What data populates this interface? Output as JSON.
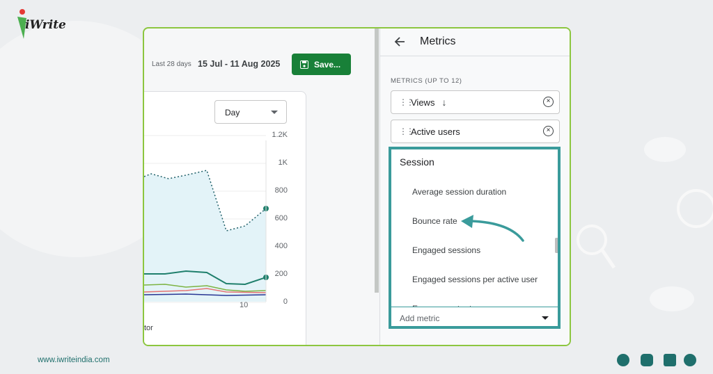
{
  "brand": {
    "logo_text": "iWrite"
  },
  "footer": {
    "url": "www.iwriteindia.com"
  },
  "report": {
    "date_range_label": "Last 28 days",
    "date_range": "15 Jul - 11 Aug 2025",
    "save_button": "Save...",
    "granularity": "Day",
    "y_axis_labels": [
      "1.2K",
      "1K",
      "800",
      "600",
      "400",
      "200",
      "0"
    ],
    "x_axis_labels": [
      "10"
    ],
    "legend_fragment": "tor"
  },
  "panel": {
    "title": "Metrics",
    "section_label": "METRICS (UP TO 12)",
    "selected_metrics": [
      "Views",
      "Active users"
    ],
    "dropdown": {
      "group": "Session",
      "options": [
        "Average session duration",
        "Bounce rate",
        "Engaged sessions",
        "Engaged sessions per active user",
        "Engagement rate"
      ],
      "input_placeholder": "Add metric"
    }
  }
}
